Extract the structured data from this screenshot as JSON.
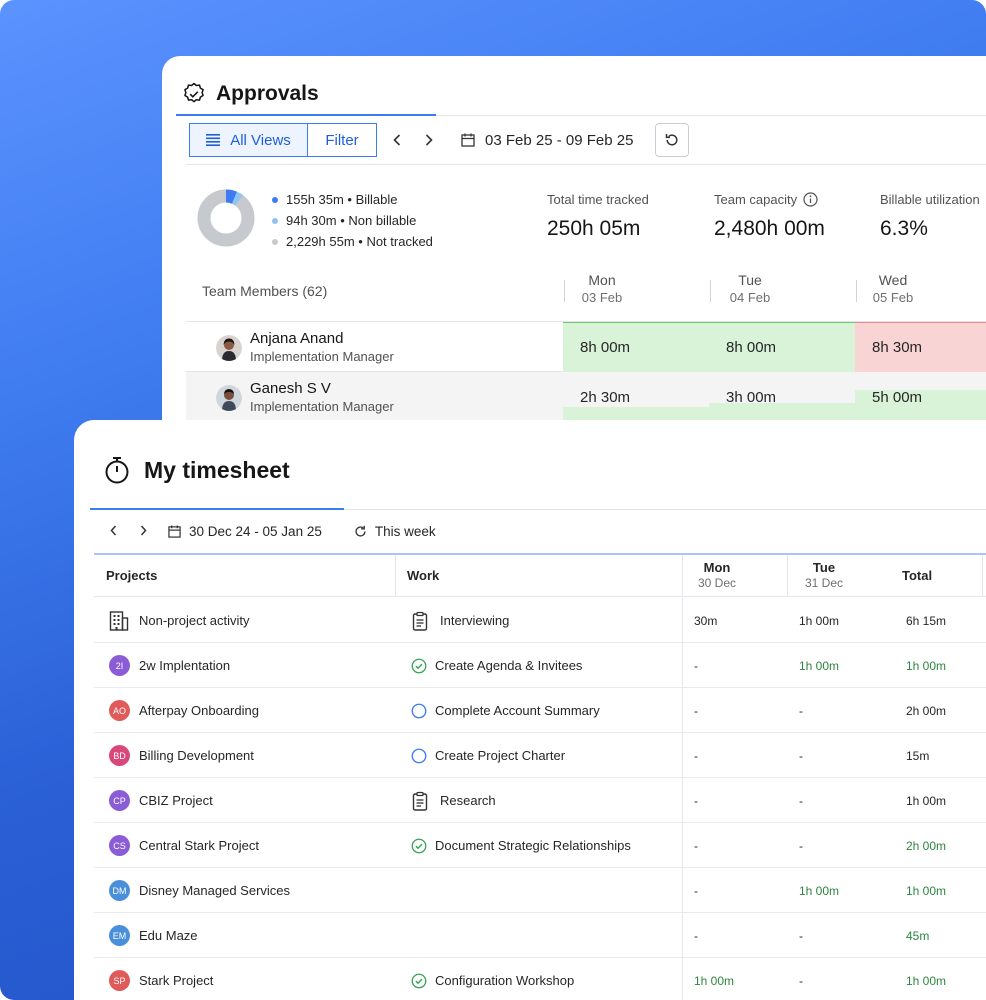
{
  "approvals": {
    "title": "Approvals",
    "toolbar": {
      "all_views_label": "All Views",
      "filter_label": "Filter",
      "date_range": "03 Feb 25 - 09 Feb 25"
    },
    "summary": {
      "legend": [
        {
          "label": "155h 35m • Billable",
          "color": "#3d7bf2"
        },
        {
          "label": "94h 30m • Non billable",
          "color": "#8cc4f5"
        },
        {
          "label": "2,229h 55m • Not tracked",
          "color": "#c6c9ce"
        }
      ],
      "stats": [
        {
          "label": "Total time tracked",
          "value": "250h 05m"
        },
        {
          "label": "Team capacity",
          "value": "2,480h 00m"
        },
        {
          "label": "Billable utilization",
          "value": "6.3%"
        }
      ]
    },
    "team_header": "Team Members (62)",
    "days": [
      {
        "day": "Mon",
        "date": "03 Feb"
      },
      {
        "day": "Tue",
        "date": "04 Feb"
      },
      {
        "day": "Wed",
        "date": "05 Feb"
      }
    ],
    "members": [
      {
        "name": "Anjana Anand",
        "role": "Implementation Manager",
        "hours": [
          "8h 00m",
          "8h 00m",
          "8h 30m"
        ]
      },
      {
        "name": "Ganesh S V",
        "role": "Implementation Manager",
        "hours": [
          "2h 30m",
          "3h 00m",
          "5h 00m"
        ]
      }
    ]
  },
  "timesheet": {
    "title": "My timesheet",
    "toolbar": {
      "date_range": "30 Dec 24 - 05 Jan 25",
      "this_week_label": "This week"
    },
    "columns": {
      "projects": "Projects",
      "work": "Work",
      "days": [
        {
          "day": "Mon",
          "date": "30 Dec"
        },
        {
          "day": "Tue",
          "date": "31 Dec"
        }
      ],
      "total": "Total"
    },
    "rows": [
      {
        "project": "Non-project activity",
        "badge": "",
        "badge_color": "",
        "work": "Interviewing",
        "work_icon": "clipboard-icon",
        "mon": "30m",
        "tue": "1h 00m",
        "total": "6h 15m"
      },
      {
        "project": "2w Implentation",
        "badge": "2I",
        "badge_color": "#8a5cd6",
        "work": "Create Agenda & Invitees",
        "work_icon": "check-circle-icon",
        "mon": "-",
        "tue": "1h 00m",
        "total": "1h 00m"
      },
      {
        "project": "Afterpay Onboarding",
        "badge": "AO",
        "badge_color": "#e05a5a",
        "work": "Complete Account Summary",
        "work_icon": "circle-outline-icon",
        "mon": "-",
        "tue": "-",
        "total": "2h 00m"
      },
      {
        "project": "Billing Development",
        "badge": "BD",
        "badge_color": "#d9487a",
        "work": "Create Project Charter",
        "work_icon": "circle-outline-icon",
        "mon": "-",
        "tue": "-",
        "total": "15m"
      },
      {
        "project": "CBIZ Project",
        "badge": "CP",
        "badge_color": "#8a5cd6",
        "work": "Research",
        "work_icon": "clipboard-icon",
        "mon": "-",
        "tue": "-",
        "total": "1h 00m"
      },
      {
        "project": "Central Stark Project",
        "badge": "CS",
        "badge_color": "#8a5cd6",
        "work": "Document Strategic Relationships",
        "work_icon": "check-circle-icon",
        "mon": "-",
        "tue": "-",
        "total": "2h 00m"
      },
      {
        "project": "Disney Managed Services",
        "badge": "DM",
        "badge_color": "#4a8fd9",
        "work": "",
        "work_icon": "",
        "mon": "-",
        "tue": "1h 00m",
        "total": "1h 00m"
      },
      {
        "project": "Edu Maze",
        "badge": "EM",
        "badge_color": "#4a8fd9",
        "work": "",
        "work_icon": "",
        "mon": "-",
        "tue": "-",
        "total": "45m"
      },
      {
        "project": "Stark Project",
        "badge": "SP",
        "badge_color": "#e05a5a",
        "work": "Configuration Workshop",
        "work_icon": "check-circle-icon",
        "mon": "1h 00m",
        "tue": "-",
        "total": "1h 00m"
      }
    ]
  }
}
